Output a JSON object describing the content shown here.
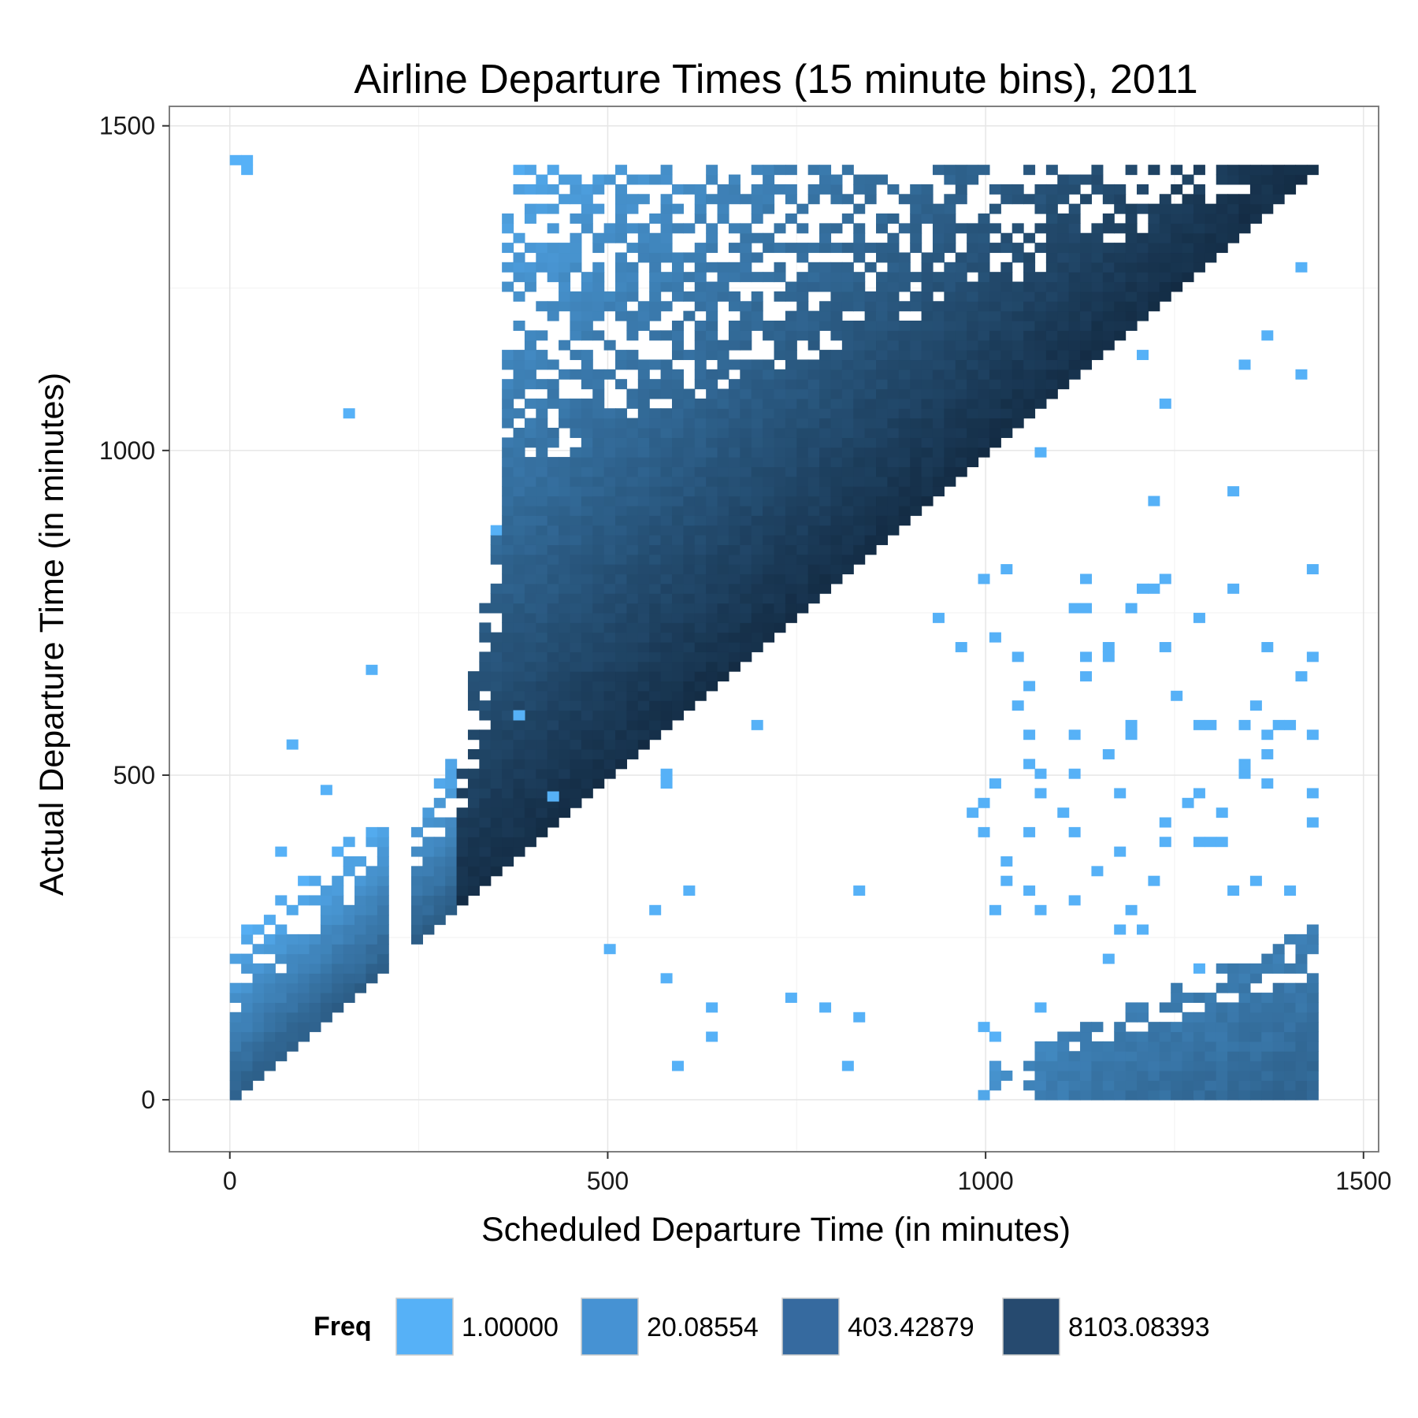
{
  "chart_data": {
    "type": "heatmap",
    "title": "Airline Departure Times (15 minute bins), 2011",
    "xlabel": "Scheduled Departure Time (in minutes)",
    "ylabel": "Actual Departure Time (in minutes)",
    "xlim": [
      -80,
      1520
    ],
    "ylim": [
      -80,
      1530
    ],
    "x_ticks": [
      0,
      500,
      1000,
      1500
    ],
    "y_ticks": [
      0,
      500,
      1000,
      1500
    ],
    "x_tick_labels": [
      "0",
      "500",
      "1000",
      "1500"
    ],
    "y_tick_labels": [
      "0",
      "500",
      "1000",
      "1500"
    ],
    "bin_width": 15,
    "grid": true,
    "color_scale": "log",
    "legend": {
      "title": "Freq",
      "placement": "bottom",
      "entries": [
        {
          "label": "1.00000",
          "color": "#56B1F7"
        },
        {
          "label": "20.08554",
          "color": "#4692D3"
        },
        {
          "label": "403.42879",
          "color": "#366A9F"
        },
        {
          "label": "8103.08393",
          "color": "#264A6F"
        }
      ]
    },
    "low_color": "#56B1F7",
    "high_color": "#132B43",
    "regions": [
      {
        "name": "main diagonal band",
        "x_range": [
          0,
          1440
        ],
        "y_range": [
          0,
          1440
        ],
        "freq_range": [
          1,
          8103
        ]
      },
      {
        "name": "after-midnight wrap",
        "x_range": [
          1000,
          1440
        ],
        "y_range": [
          0,
          300
        ],
        "freq_range": [
          1,
          300
        ]
      },
      {
        "name": "early morning cluster",
        "x_range": [
          0,
          220
        ],
        "y_range": [
          0,
          450
        ],
        "freq_range": [
          1,
          200
        ]
      }
    ]
  }
}
